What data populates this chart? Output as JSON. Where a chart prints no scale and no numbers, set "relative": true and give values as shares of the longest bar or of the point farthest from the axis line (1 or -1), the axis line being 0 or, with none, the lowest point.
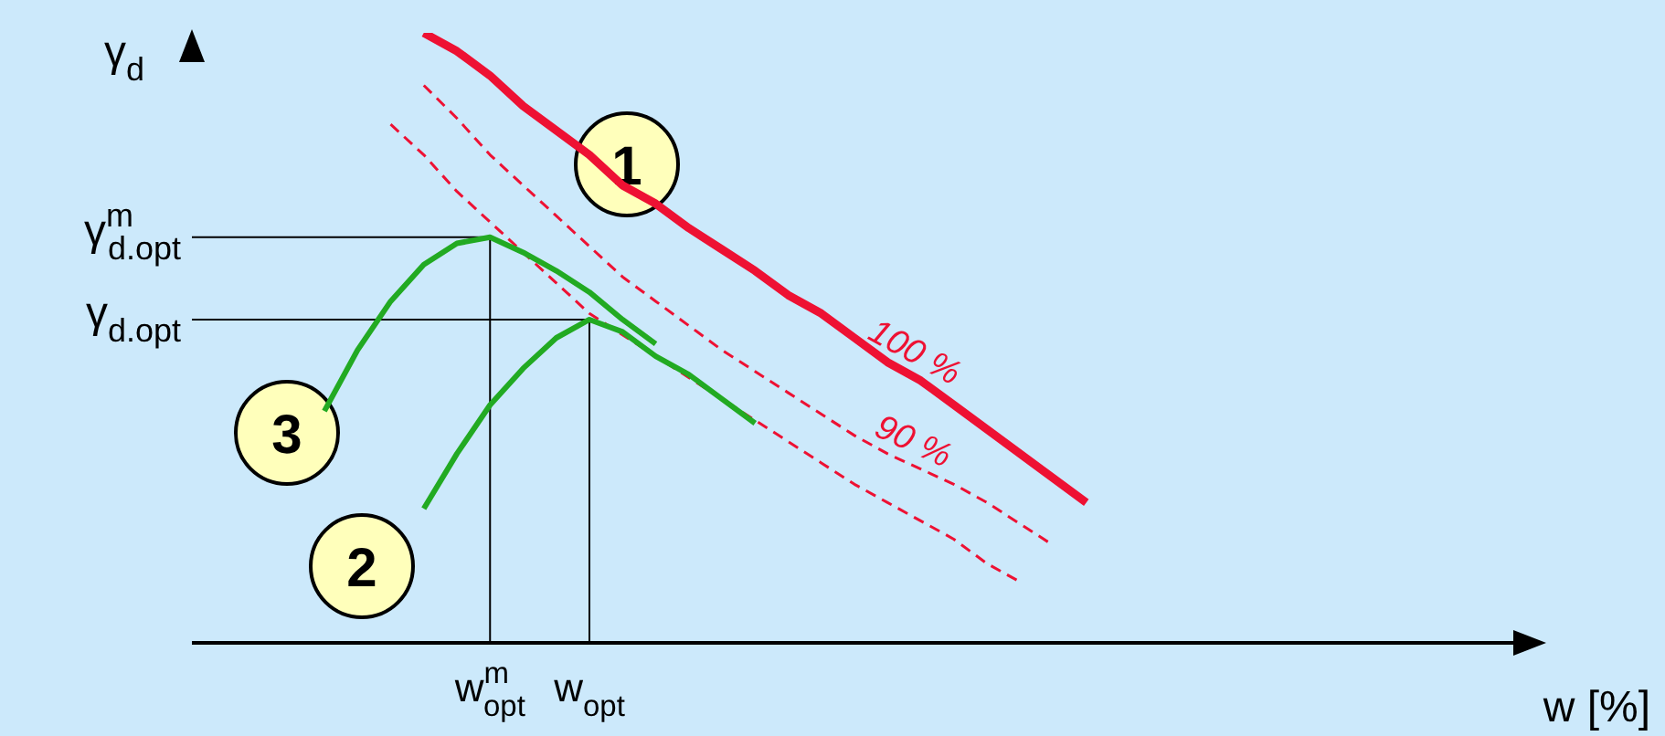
{
  "chart_data": {
    "type": "line",
    "relative": true,
    "xlabel": "w [%]",
    "ylabel": "γ$_{d}$",
    "categories": [
      null,
      null,
      null,
      null,
      null,
      null,
      null,
      null,
      null,
      "w$^{m}$$_{opt}$",
      null,
      null,
      "w$_{opt}$",
      null,
      null,
      null,
      null,
      null,
      null,
      null,
      null,
      null,
      null,
      null,
      null,
      null,
      null,
      null,
      null,
      null,
      null,
      null,
      null,
      null,
      null,
      null,
      null,
      null,
      null,
      null,
      null
    ],
    "series": [
      {
        "name": "100 %",
        "color": "#ee1133",
        "line_style": "solid",
        "values": [
          null,
          null,
          null,
          null,
          null,
          null,
          null,
          1.0,
          0.97,
          0.93,
          0.88,
          0.84,
          0.8,
          0.75,
          0.72,
          0.68,
          0.645,
          0.61,
          0.57,
          0.54,
          0.5,
          0.46,
          0.43,
          0.39,
          0.35,
          0.31,
          0.27,
          0.23,
          null,
          null,
          null,
          null,
          null,
          null,
          null,
          null,
          null,
          null,
          null,
          null,
          null
        ]
      },
      {
        "name": "90 %",
        "color": "#ee1133",
        "line_style": "dashed",
        "values": [
          null,
          null,
          null,
          null,
          null,
          null,
          null,
          0.914,
          0.86,
          0.8,
          0.75,
          0.7,
          0.65,
          0.6,
          0.56,
          0.52,
          0.48,
          0.445,
          0.41,
          0.375,
          0.34,
          0.31,
          0.285,
          0.26,
          0.23,
          0.195,
          0.16,
          null,
          null,
          null,
          null,
          null,
          null,
          null,
          null,
          null,
          null,
          null,
          null,
          null,
          null
        ]
      },
      {
        "color": "#ee1133",
        "line_style": "dashed",
        "values": [
          null,
          null,
          null,
          null,
          null,
          null,
          0.85,
          0.8,
          0.74,
          0.69,
          0.64,
          0.59,
          0.54,
          0.505,
          0.47,
          0.435,
          0.4,
          0.365,
          0.33,
          0.295,
          0.26,
          0.23,
          0.2,
          0.17,
          0.13,
          0.1,
          null,
          null,
          null,
          null,
          null,
          null,
          null,
          null,
          null,
          null,
          null,
          null,
          null,
          null,
          null
        ]
      },
      {
        "color": "#22aa22",
        "line_style": "solid",
        "values": [
          null,
          null,
          null,
          null,
          0.38,
          0.48,
          0.56,
          0.62,
          0.655,
          0.665,
          0.64,
          0.61,
          0.575,
          0.53,
          0.49,
          null,
          null,
          null,
          null,
          null,
          null,
          null,
          null,
          null,
          null,
          null,
          null,
          null,
          null,
          null,
          null,
          null,
          null,
          null,
          null,
          null,
          null,
          null,
          null,
          null,
          null
        ]
      },
      {
        "color": "#22aa22",
        "line_style": "solid",
        "values": [
          null,
          null,
          null,
          null,
          null,
          null,
          null,
          0.22,
          0.31,
          0.39,
          0.45,
          0.5,
          0.53,
          0.51,
          0.47,
          0.44,
          0.4,
          0.36,
          null,
          null,
          null,
          null,
          null,
          null,
          null,
          null,
          null,
          null,
          null,
          null,
          null,
          null,
          null,
          null,
          null,
          null,
          null,
          null,
          null,
          null,
          null
        ]
      }
    ],
    "annotations": [
      "γ$^{m}$$_{d.opt}$",
      "γ$_{d.opt}$",
      "1",
      "3",
      "2"
    ]
  }
}
